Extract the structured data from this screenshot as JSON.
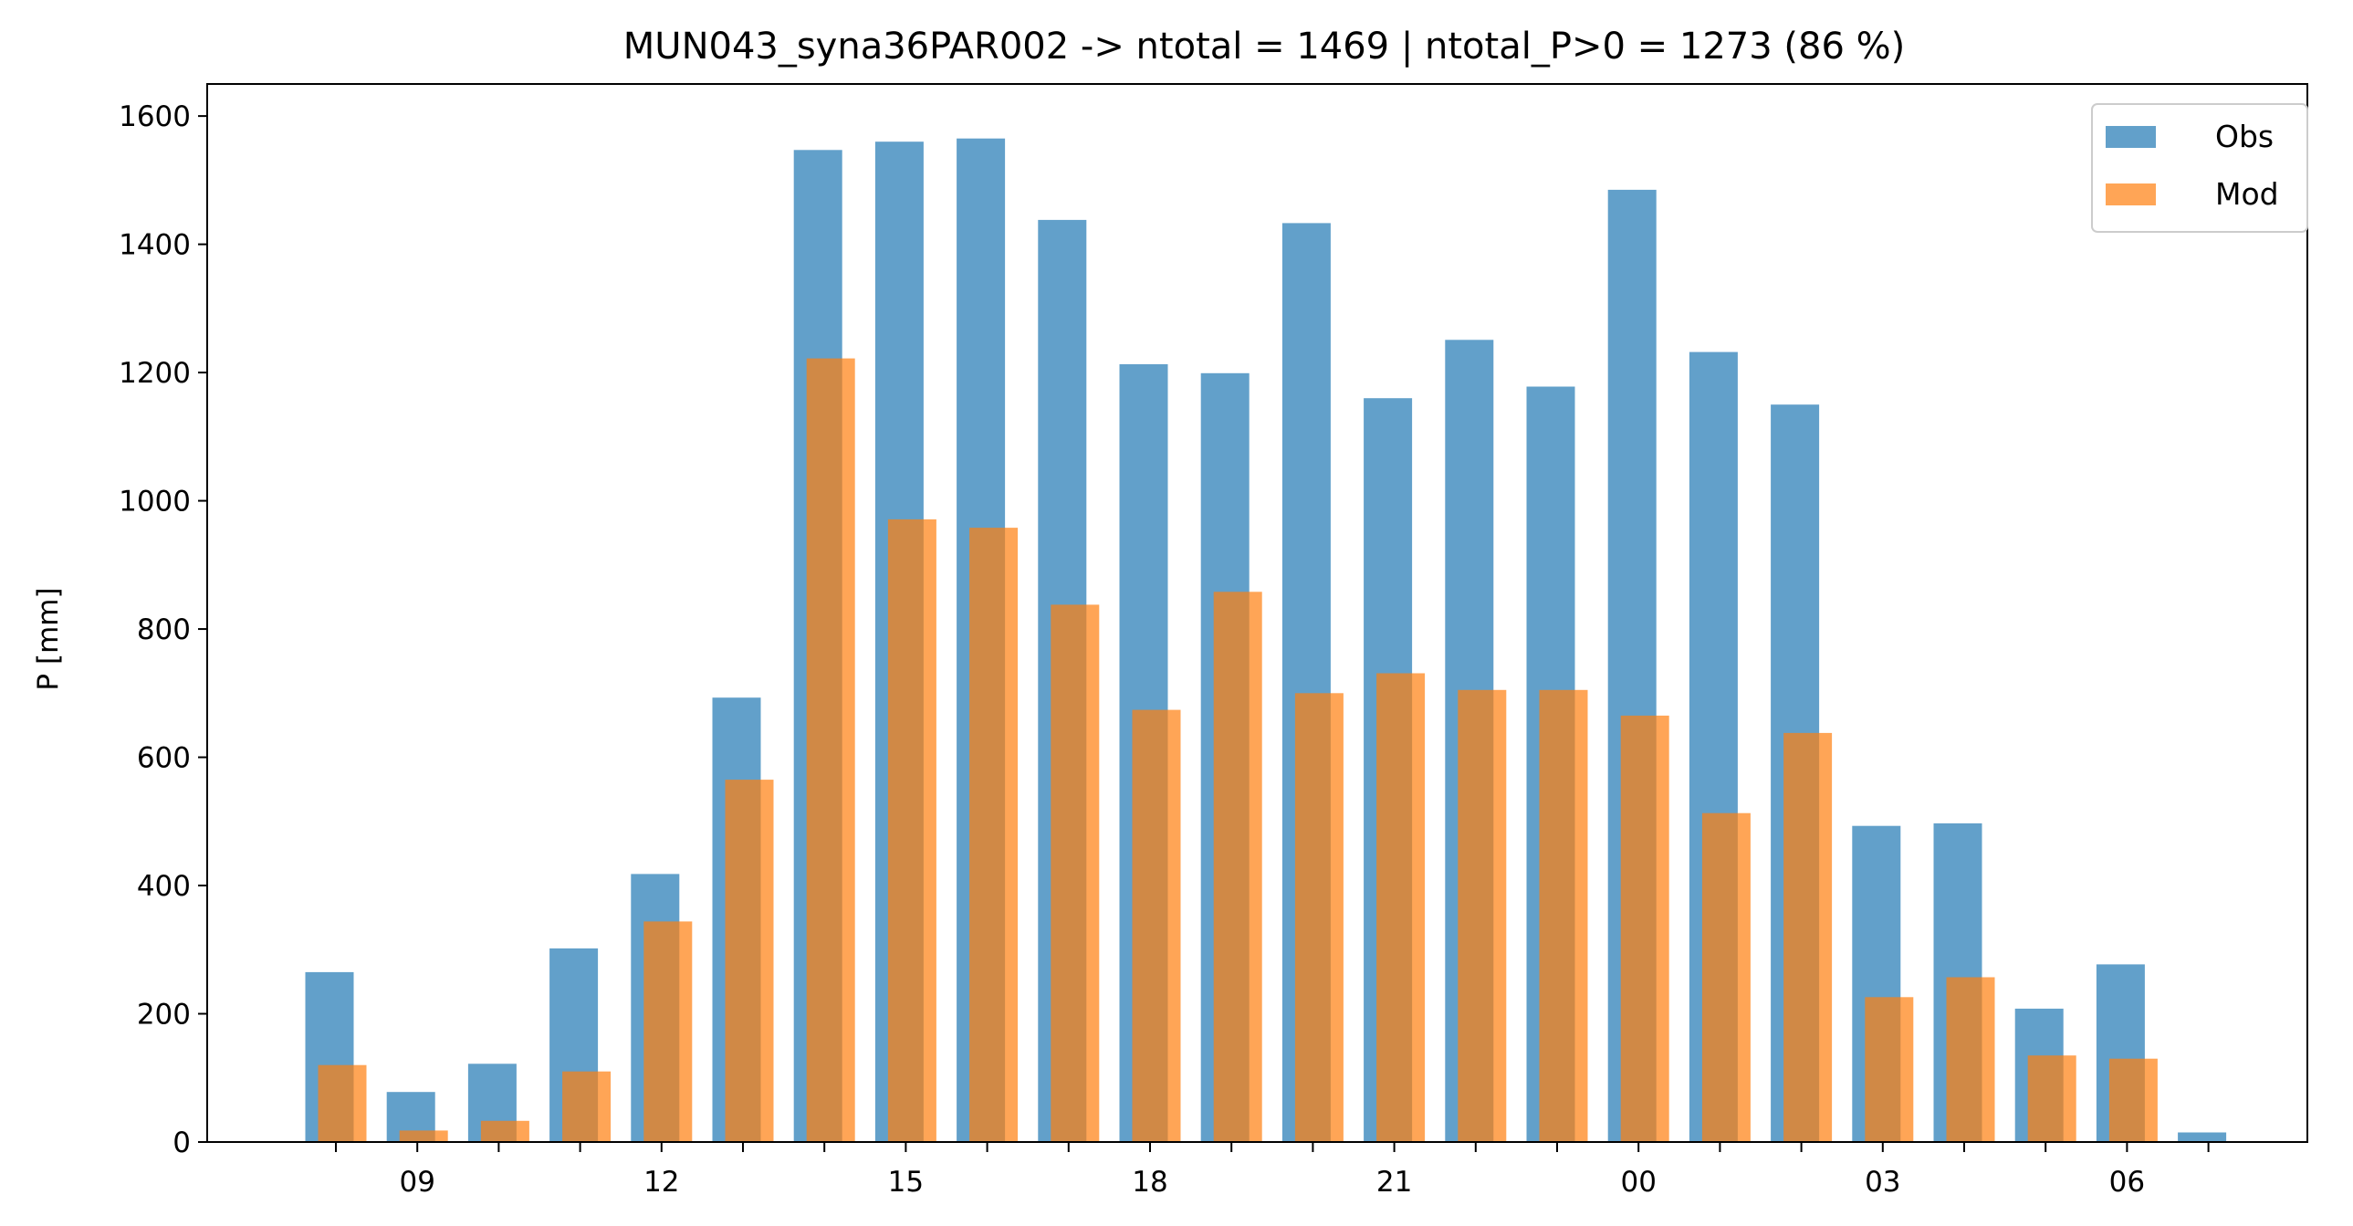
{
  "chart_data": {
    "type": "bar",
    "title": "MUN043_syna36PAR002 -> ntotal = 1469 | ntotal_P>0 = 1273 (86 %)",
    "xlabel": "",
    "ylabel": "P [mm]",
    "ylim": [
      0,
      1650
    ],
    "yticks": [
      0,
      200,
      400,
      600,
      800,
      1000,
      1200,
      1400,
      1600
    ],
    "hours": [
      8,
      9,
      10,
      11,
      12,
      13,
      14,
      15,
      16,
      17,
      18,
      19,
      20,
      21,
      22,
      23,
      0,
      1,
      2,
      3,
      4,
      5,
      6,
      7
    ],
    "x_tick_labels": [
      "09",
      "12",
      "15",
      "18",
      "21",
      "00",
      "03",
      "06"
    ],
    "legend": {
      "position": "top-right"
    },
    "grid": false,
    "series": [
      {
        "name": "Obs",
        "color": "#1f77b4",
        "opacity": 0.7,
        "values": [
          265,
          78,
          122,
          302,
          418,
          693,
          1547,
          1560,
          1565,
          1438,
          1213,
          1199,
          1433,
          1160,
          1251,
          1178,
          1485,
          1232,
          1150,
          493,
          497,
          208,
          277,
          15
        ]
      },
      {
        "name": "Mod",
        "color": "#ff7f0e",
        "opacity": 0.7,
        "values": [
          120,
          18,
          33,
          110,
          344,
          565,
          1222,
          971,
          958,
          838,
          674,
          858,
          700,
          731,
          705,
          705,
          665,
          513,
          638,
          226,
          257,
          135,
          130,
          0
        ]
      }
    ]
  }
}
